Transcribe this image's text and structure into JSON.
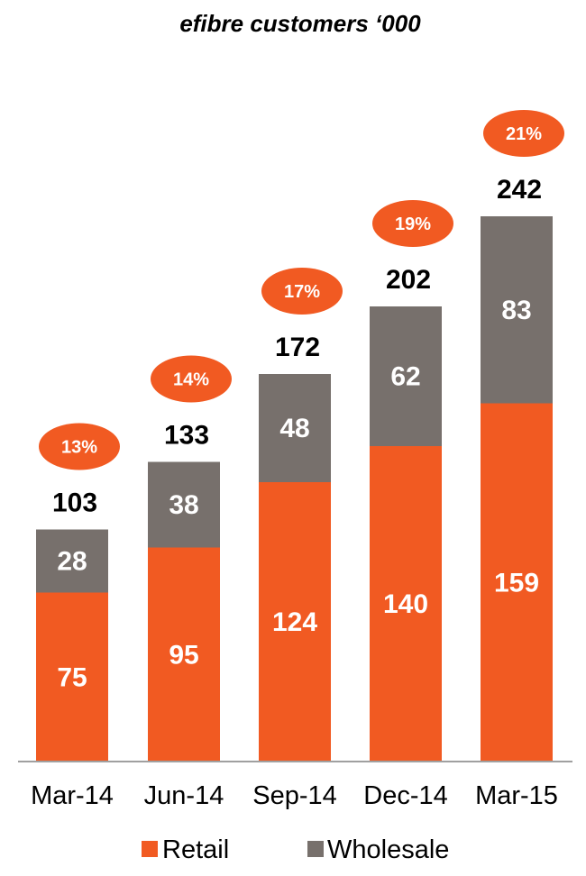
{
  "chart_data": {
    "type": "bar",
    "stacked": true,
    "title": "efibre customers ‘000",
    "categories": [
      "Mar-14",
      "Jun-14",
      "Sep-14",
      "Dec-14",
      "Mar-15"
    ],
    "series": [
      {
        "name": "Retail",
        "values": [
          75,
          95,
          124,
          140,
          159
        ],
        "color": "#f15a22"
      },
      {
        "name": "Wholesale",
        "values": [
          28,
          38,
          48,
          62,
          83
        ],
        "color": "#77706c"
      }
    ],
    "totals": [
      103,
      133,
      172,
      202,
      242
    ],
    "percentages": [
      "13%",
      "14%",
      "17%",
      "19%",
      "21%"
    ],
    "percent_badge_color": "#f15a22",
    "ylim": [
      0,
      242
    ],
    "grid": false,
    "legend": "bottom"
  }
}
